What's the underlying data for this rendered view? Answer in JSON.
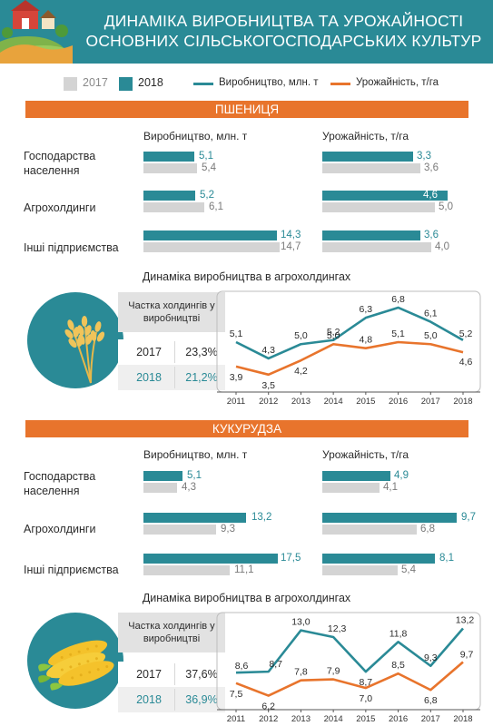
{
  "title": "Динаміка виробництва та урожайності основних сільськогосподарських культур",
  "legend": {
    "y2017": "2017",
    "y2018": "2018",
    "production": "Виробництво, млн. т",
    "yield": "Урожайність, т/га"
  },
  "colors": {
    "teal": "#2a8a96",
    "gray": "#d4d4d4",
    "orange": "#e8742c"
  },
  "wheat": {
    "section": "Пшениця",
    "col_production": "Виробництво, млн. т",
    "col_yield": "Урожайність, т/га",
    "rows": [
      {
        "label": "Господарства населення",
        "prod2018": "5,1",
        "prod2017": "5,4",
        "yield2018": "3,3",
        "yield2017": "3,6"
      },
      {
        "label": "Агрохолдинги",
        "prod2018": "5,2",
        "prod2017": "6,1",
        "yield2018": "4,6",
        "yield2017": "5,0"
      },
      {
        "label": "Інші підприємства",
        "prod2018": "14,3",
        "prod2017": "14,7",
        "yield2018": "3,6",
        "yield2017": "4,0"
      }
    ],
    "chart_title": "Динаміка виробництва в агрохолдингах",
    "share": {
      "title": "Частка холдингів у виробництві",
      "y2017": "2017",
      "p2017": "23,3%",
      "y2018": "2018",
      "p2018": "21,2%"
    }
  },
  "corn": {
    "section": "Кукурудза",
    "col_production": "Виробництво, млн. т",
    "col_yield": "Урожайність, т/га",
    "rows": [
      {
        "label": "Господарства населення",
        "prod2018": "5,1",
        "prod2017": "4,3",
        "yield2018": "4,9",
        "yield2017": "4,1"
      },
      {
        "label": "Агрохолдинги",
        "prod2018": "13,2",
        "prod2017": "9,3",
        "yield2018": "9,7",
        "yield2017": "6,8"
      },
      {
        "label": "Інші підприємства",
        "prod2018": "17,5",
        "prod2017": "11,1",
        "yield2018": "8,1",
        "yield2017": "5,4"
      }
    ],
    "chart_title": "Динаміка виробництва в агрохолдингах",
    "share": {
      "title": "Частка холдингів у виробництві",
      "y2017": "2017",
      "p2017": "37,6%",
      "y2018": "2018",
      "p2018": "36,9%"
    }
  },
  "chart_data": [
    {
      "type": "line",
      "title": "Динаміка виробництва в агрохолдингах",
      "x": [
        "2011",
        "2012",
        "2013",
        "2014",
        "2015",
        "2016",
        "2017",
        "2018"
      ],
      "series": [
        {
          "name": "Виробництво, млн. т",
          "values": [
            5.1,
            4.3,
            5.0,
            5.2,
            6.3,
            6.8,
            6.1,
            5.2
          ],
          "labels": [
            "5,1",
            "4,3",
            "5,0",
            "5,2",
            "6,3",
            "6,8",
            "6,1",
            "5,2"
          ]
        },
        {
          "name": "Урожайність, т/га",
          "values": [
            3.9,
            3.5,
            4.2,
            5.0,
            4.8,
            5.1,
            5.0,
            4.6
          ],
          "labels": [
            "3,9",
            "3,5",
            "4,2",
            "5,0",
            "4,8",
            "5,1",
            "5,0",
            "4,6"
          ]
        }
      ],
      "ylim": [
        3.0,
        7.2
      ],
      "grid": false
    },
    {
      "type": "line",
      "title": "Динаміка виробництва в агрохолдингах",
      "x": [
        "2011",
        "2012",
        "2013",
        "2014",
        "2015",
        "2016",
        "2017",
        "2018"
      ],
      "series": [
        {
          "name": "Виробництво, млн. т",
          "values": [
            8.6,
            8.7,
            13.0,
            12.3,
            8.7,
            11.8,
            9.3,
            13.2
          ],
          "labels": [
            "8,6",
            "8,7",
            "13,0",
            "12,3",
            "8,7",
            "11,8",
            "9,3",
            "13,2"
          ]
        },
        {
          "name": "Урожайність, т/га",
          "values": [
            7.5,
            6.2,
            7.8,
            7.9,
            7.0,
            8.5,
            6.8,
            9.7
          ],
          "labels": [
            "7,5",
            "6,2",
            "7,8",
            "7,9",
            "7,0",
            "8,5",
            "6,8",
            "9,7"
          ]
        }
      ],
      "ylim": [
        5.5,
        14.0
      ],
      "grid": false
    }
  ]
}
